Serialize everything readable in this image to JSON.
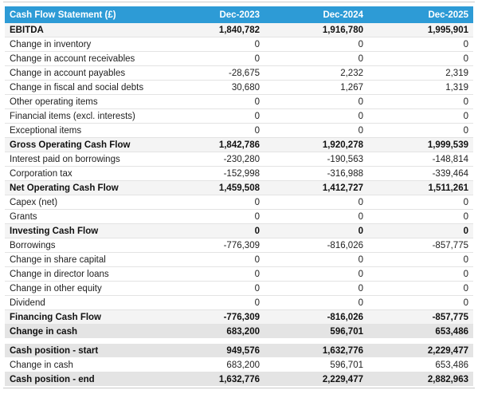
{
  "colors": {
    "header_bg": "#2d9bd6",
    "header_text": "#ffffff",
    "section_row_bg": "#f4f4f4",
    "summary_row_bg": "#e4e4e4",
    "divider": "#cccccc",
    "body_text": "#222222"
  },
  "table": {
    "header": {
      "title": "Cash Flow Statement (£)",
      "columns": [
        "Dec-2023",
        "Dec-2024",
        "Dec-2025"
      ]
    },
    "rows": [
      {
        "label": "EBITDA",
        "values": [
          "1,840,782",
          "1,916,780",
          "1,995,901"
        ],
        "style": "section"
      },
      {
        "label": "Change in inventory",
        "values": [
          "0",
          "0",
          "0"
        ],
        "style": "normal"
      },
      {
        "label": "Change in account receivables",
        "values": [
          "0",
          "0",
          "0"
        ],
        "style": "normal"
      },
      {
        "label": "Change in account payables",
        "values": [
          "-28,675",
          "2,232",
          "2,319"
        ],
        "style": "normal"
      },
      {
        "label": "Change in fiscal and social debts",
        "values": [
          "30,680",
          "1,267",
          "1,319"
        ],
        "style": "normal"
      },
      {
        "label": "Other operating items",
        "values": [
          "0",
          "0",
          "0"
        ],
        "style": "normal"
      },
      {
        "label": "Financial items (excl. interests)",
        "values": [
          "0",
          "0",
          "0"
        ],
        "style": "normal"
      },
      {
        "label": "Exceptional items",
        "values": [
          "0",
          "0",
          "0"
        ],
        "style": "normal"
      },
      {
        "label": "Gross Operating Cash Flow",
        "values": [
          "1,842,786",
          "1,920,278",
          "1,999,539"
        ],
        "style": "section"
      },
      {
        "label": "Interest paid on borrowings",
        "values": [
          "-230,280",
          "-190,563",
          "-148,814"
        ],
        "style": "normal"
      },
      {
        "label": "Corporation tax",
        "values": [
          "-152,998",
          "-316,988",
          "-339,464"
        ],
        "style": "normal"
      },
      {
        "label": "Net Operating Cash Flow",
        "values": [
          "1,459,508",
          "1,412,727",
          "1,511,261"
        ],
        "style": "section"
      },
      {
        "label": "Capex (net)",
        "values": [
          "0",
          "0",
          "0"
        ],
        "style": "normal"
      },
      {
        "label": "Grants",
        "values": [
          "0",
          "0",
          "0"
        ],
        "style": "normal"
      },
      {
        "label": "Investing Cash Flow",
        "values": [
          "0",
          "0",
          "0"
        ],
        "style": "section"
      },
      {
        "label": "Borrowings",
        "values": [
          "-776,309",
          "-816,026",
          "-857,775"
        ],
        "style": "normal"
      },
      {
        "label": "Change in share capital",
        "values": [
          "0",
          "0",
          "0"
        ],
        "style": "normal"
      },
      {
        "label": "Change in director loans",
        "values": [
          "0",
          "0",
          "0"
        ],
        "style": "normal"
      },
      {
        "label": "Change in other equity",
        "values": [
          "0",
          "0",
          "0"
        ],
        "style": "normal"
      },
      {
        "label": "Dividend",
        "values": [
          "0",
          "0",
          "0"
        ],
        "style": "normal"
      },
      {
        "label": "Financing Cash Flow",
        "values": [
          "-776,309",
          "-816,026",
          "-857,775"
        ],
        "style": "section"
      },
      {
        "label": "Change in cash",
        "values": [
          "683,200",
          "596,701",
          "653,486"
        ],
        "style": "summary"
      },
      {
        "label": "Cash position - start",
        "values": [
          "949,576",
          "1,632,776",
          "2,229,477"
        ],
        "style": "summary",
        "spacer_before": true
      },
      {
        "label": "Change in cash",
        "values": [
          "683,200",
          "596,701",
          "653,486"
        ],
        "style": "normal"
      },
      {
        "label": "Cash position - end",
        "values": [
          "1,632,776",
          "2,229,477",
          "2,882,963"
        ],
        "style": "summary"
      }
    ]
  }
}
